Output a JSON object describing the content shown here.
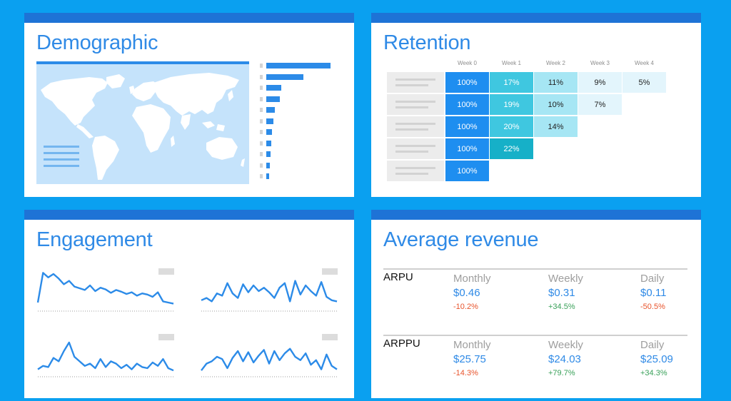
{
  "cards": {
    "demographic": {
      "title": "Demographic"
    },
    "retention": {
      "title": "Retention"
    },
    "engagement": {
      "title": "Engagement"
    },
    "average_revenue": {
      "title": "Average revenue"
    }
  },
  "demographic": {
    "bar_values": [
      95,
      55,
      22,
      20,
      13,
      10,
      8,
      7,
      6,
      5,
      4
    ]
  },
  "retention": {
    "week_labels": [
      "Week 0",
      "Week 1",
      "Week 2",
      "Week 3",
      "Week 4"
    ],
    "rows": [
      [
        "100%",
        "17%",
        "11%",
        "9%",
        "5%"
      ],
      [
        "100%",
        "19%",
        "10%",
        "7%"
      ],
      [
        "100%",
        "20%",
        "14%"
      ],
      [
        "100%",
        "22%"
      ],
      [
        "100%"
      ]
    ],
    "colors": {
      "week0": "#1e8ef0",
      "high": "#3fc7e0",
      "peak": "#16b0c8",
      "mid": "#a6e6f4",
      "low": "#e3f5fc"
    }
  },
  "engagement": {
    "series": [
      [
        10,
        62,
        54,
        60,
        52,
        42,
        48,
        38,
        35,
        32,
        40,
        30,
        36,
        33,
        27,
        32,
        29,
        25,
        28,
        22,
        26,
        24,
        20,
        28,
        12,
        10,
        8
      ],
      [
        14,
        18,
        12,
        26,
        22,
        44,
        26,
        18,
        42,
        28,
        40,
        30,
        36,
        28,
        18,
        36,
        44,
        12,
        48,
        24,
        40,
        30,
        22,
        46,
        20,
        14,
        12
      ],
      [
        8,
        14,
        12,
        28,
        22,
        40,
        55,
        30,
        22,
        14,
        18,
        10,
        26,
        12,
        22,
        18,
        10,
        16,
        8,
        18,
        12,
        10,
        20,
        14,
        26,
        10,
        6
      ],
      [
        6,
        18,
        22,
        30,
        26,
        10,
        28,
        40,
        22,
        38,
        20,
        32,
        42,
        18,
        40,
        24,
        36,
        44,
        30,
        24,
        36,
        16,
        24,
        8,
        34,
        14,
        8
      ]
    ],
    "line_color": "#2c8be8"
  },
  "revenue": {
    "rows": [
      {
        "name": "ARPU",
        "cols": [
          {
            "period": "Monthly",
            "value": "$0.46",
            "change": "-10.2%",
            "dir": "down"
          },
          {
            "period": "Weekly",
            "value": "$0.31",
            "change": "+34.5%",
            "dir": "up"
          },
          {
            "period": "Daily",
            "value": "$0.11",
            "change": "-50.5%",
            "dir": "down"
          }
        ]
      },
      {
        "name": "ARPPU",
        "cols": [
          {
            "period": "Monthly",
            "value": "$25.75",
            "change": "-14.3%",
            "dir": "down"
          },
          {
            "period": "Weekly",
            "value": "$24.03",
            "change": "+79.7%",
            "dir": "up"
          },
          {
            "period": "Daily",
            "value": "$25.09",
            "change": "+34.3%",
            "dir": "up"
          }
        ]
      }
    ],
    "colors": {
      "down": "#e8542c",
      "up": "#3aa15a"
    }
  }
}
